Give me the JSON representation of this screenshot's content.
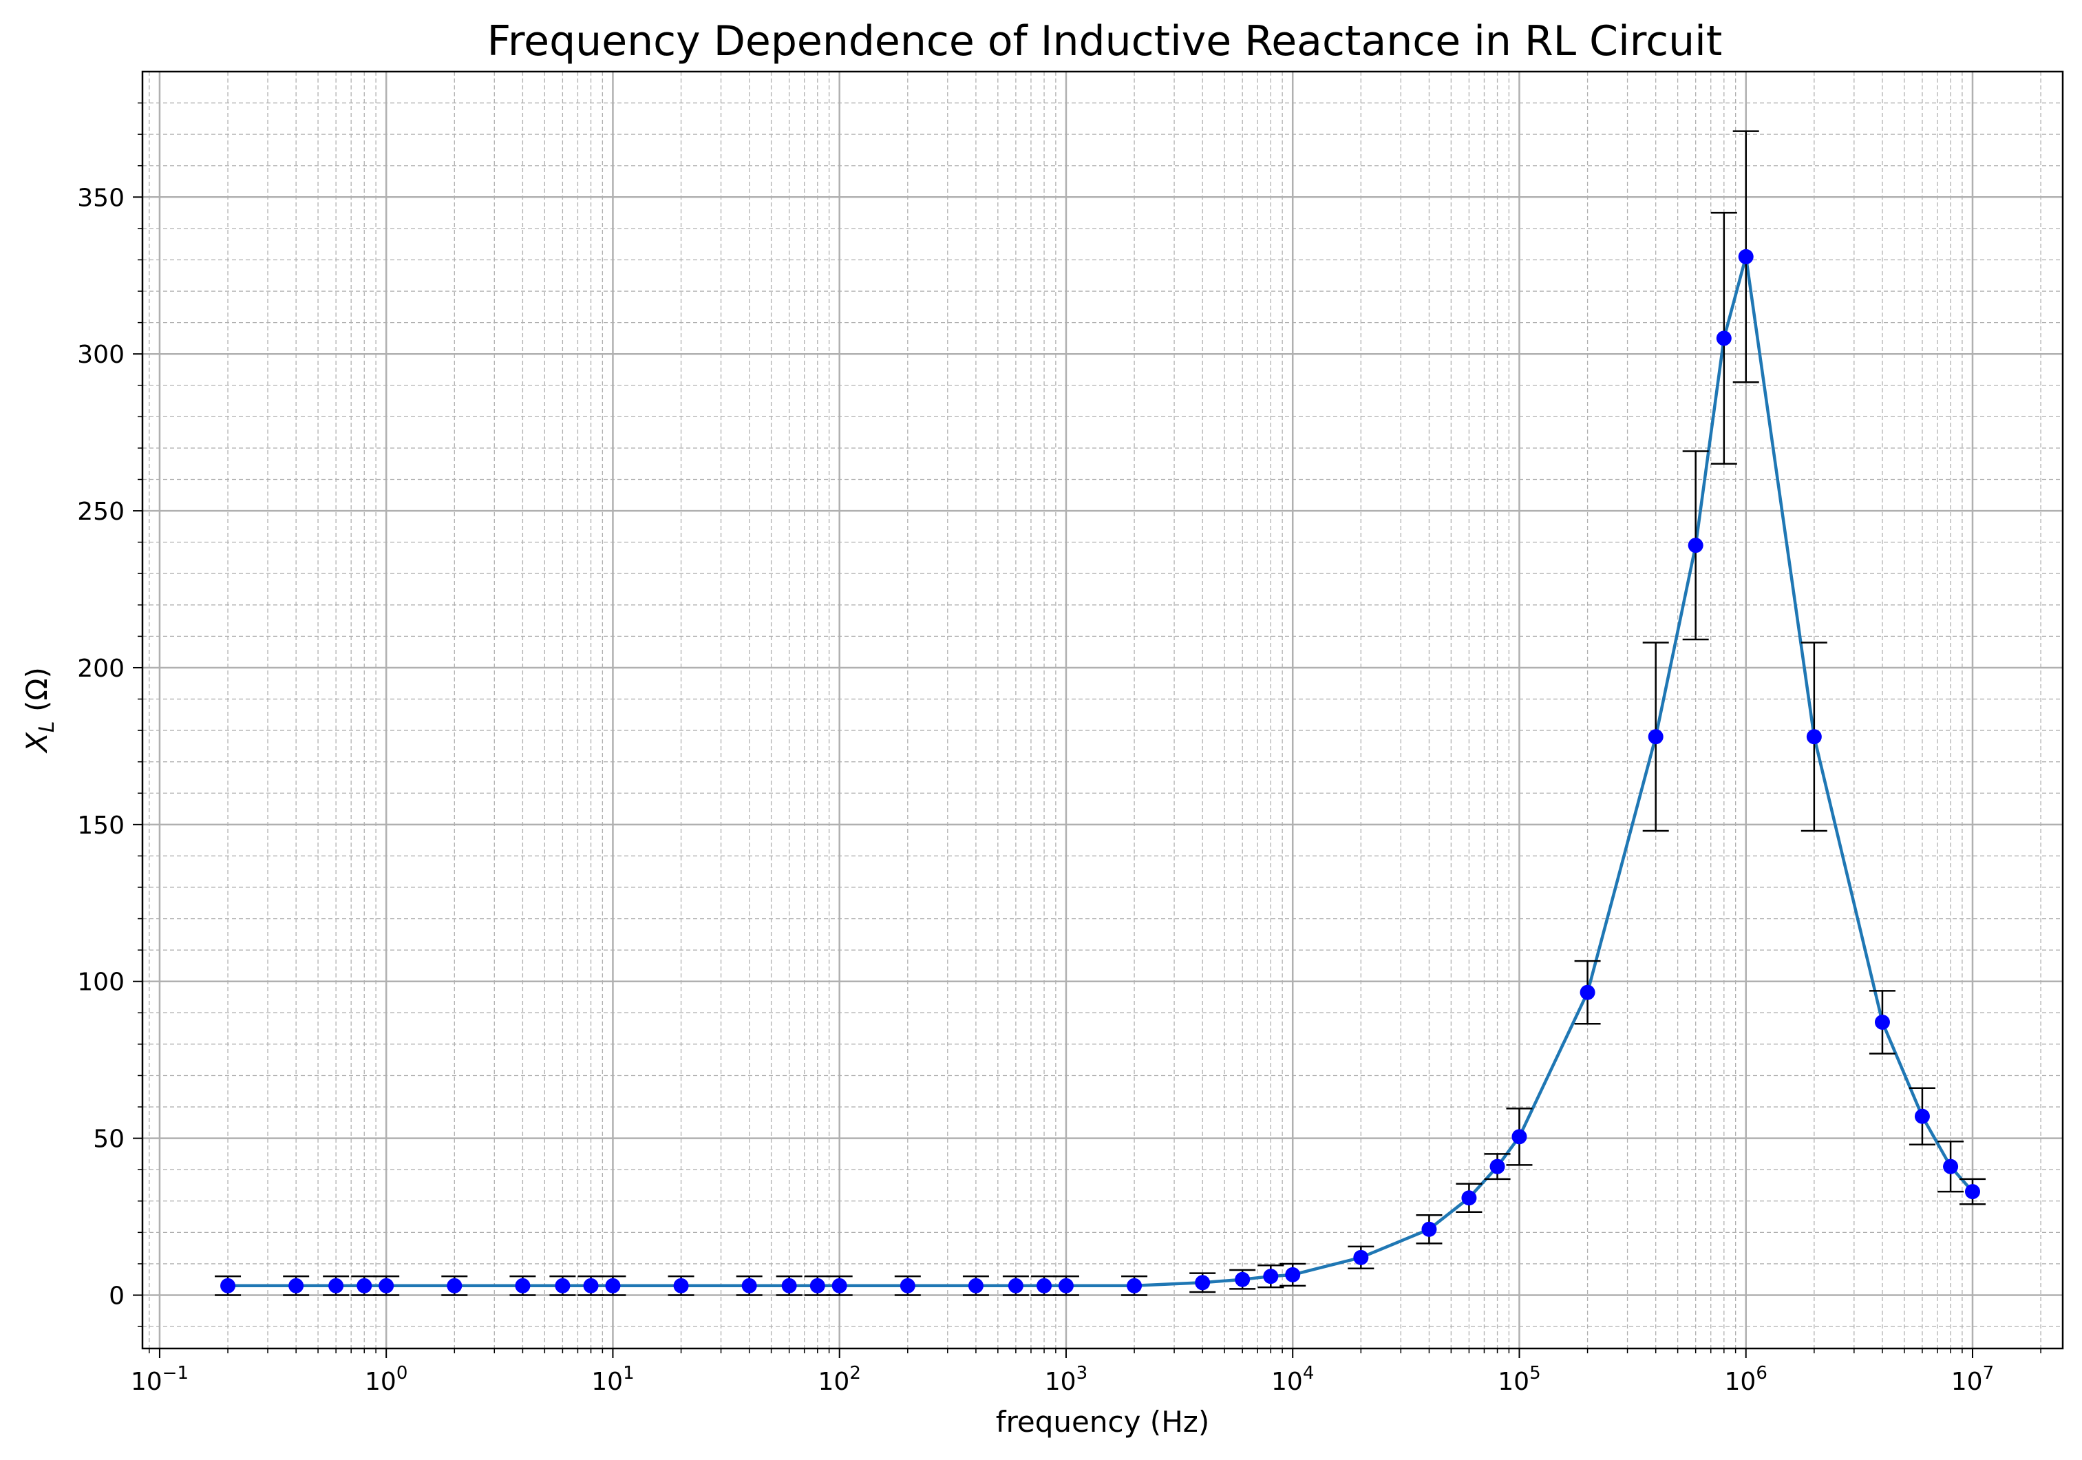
{
  "chart_data": {
    "type": "scatter",
    "title": "Frequency Dependence of Inductive Reactance in RL Circuit",
    "xlabel": "frequency (Hz)",
    "ylabel": "X_L (Ω)",
    "ylabel_main": "X",
    "ylabel_sub": "L",
    "ylabel_unit": " (Ω)",
    "x_scale": "log",
    "xlim": [
      0.084,
      25000000
    ],
    "ylim": [
      -17,
      390
    ],
    "grid": {
      "major": true,
      "minor": true
    },
    "x_ticks": [
      {
        "base": "10",
        "exp": "−1",
        "value": 0.1
      },
      {
        "base": "10",
        "exp": "0",
        "value": 1
      },
      {
        "base": "10",
        "exp": "1",
        "value": 10
      },
      {
        "base": "10",
        "exp": "2",
        "value": 100
      },
      {
        "base": "10",
        "exp": "3",
        "value": 1000
      },
      {
        "base": "10",
        "exp": "4",
        "value": 10000
      },
      {
        "base": "10",
        "exp": "5",
        "value": 100000
      },
      {
        "base": "10",
        "exp": "6",
        "value": 1000000
      },
      {
        "base": "10",
        "exp": "7",
        "value": 10000000
      }
    ],
    "y_ticks": [
      "0",
      "50",
      "100",
      "150",
      "200",
      "250",
      "300",
      "350"
    ],
    "colors": {
      "line": "#1f77b4",
      "marker": "#0000ff",
      "errorbar": "#000000",
      "grid_major": "#b0b0b0",
      "grid_minor": "#b0b0b0"
    },
    "series": [
      {
        "x": [
          0.2,
          0.4,
          0.6,
          0.8,
          1,
          2,
          4,
          6,
          8,
          10,
          20,
          40,
          60,
          80,
          100,
          200,
          400,
          600,
          800,
          1000,
          2000,
          4000,
          6000,
          8000,
          10000,
          20000,
          40000,
          60000,
          80000,
          100000,
          200000,
          400000,
          600000,
          800000,
          1000000,
          2000000,
          4000000,
          6000000,
          8000000,
          10000000
        ],
        "y": [
          3,
          3,
          3,
          3,
          3,
          3,
          3,
          3,
          3,
          3,
          3,
          3,
          3,
          3,
          3,
          3,
          3,
          3,
          3,
          3,
          3,
          4,
          5,
          6,
          6.5,
          12,
          21,
          31,
          41,
          50.5,
          96.5,
          178,
          239,
          305,
          331,
          178,
          87,
          57,
          41,
          33
        ],
        "yerr": [
          3,
          3,
          3,
          3,
          3,
          3,
          3,
          3,
          3,
          3,
          3,
          3,
          3,
          3,
          3,
          3,
          3,
          3,
          3,
          3,
          3,
          3,
          3,
          3.5,
          3.5,
          3.5,
          4.5,
          4.5,
          4,
          9,
          10,
          30,
          30,
          40,
          40,
          30,
          10,
          9,
          8,
          4
        ]
      }
    ]
  }
}
